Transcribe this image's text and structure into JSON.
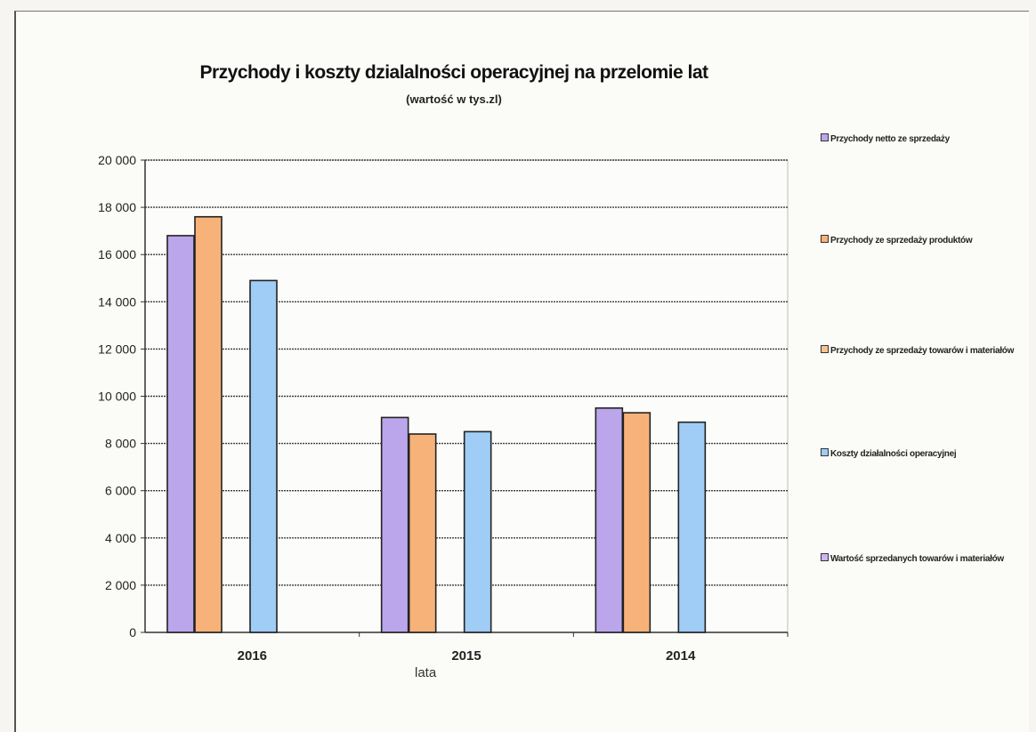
{
  "chart_data": {
    "type": "bar",
    "title": "Przychody i koszty dzialalności operacyjnej na przelomie lat",
    "subtitle": "(wartość w tys.zl)",
    "xlabel": "lata",
    "ylabel": "",
    "categories": [
      "2016",
      "2015",
      "2014"
    ],
    "ylim": [
      0,
      20000
    ],
    "yticks": [
      0,
      2000,
      4000,
      6000,
      8000,
      10000,
      12000,
      14000,
      16000,
      18000,
      20000
    ],
    "ytick_labels": [
      "0",
      "2 000",
      "4 000",
      "6 000",
      "8 000",
      "10 000",
      "12 000",
      "14 000",
      "16 000",
      "18 000",
      "20 000"
    ],
    "grid": true,
    "legend_position": "right",
    "series": [
      {
        "name": "Przychody netto ze sprzedaży",
        "color": "#bba6ec",
        "values": [
          16800,
          9100,
          9500
        ]
      },
      {
        "name": "Przychody ze sprzedaży produktów",
        "color": "#f7b27a",
        "values": [
          17600,
          8400,
          9300
        ]
      },
      {
        "name": "Przychody ze sprzedaży towarów i materiałów",
        "color": "#f4c48e",
        "values": [
          0,
          0,
          0
        ]
      },
      {
        "name": "Koszty działalności operacyjnej",
        "color": "#9fcdf5",
        "values": [
          14900,
          8500,
          8900
        ]
      },
      {
        "name": "Wartość sprzedanych towarów i materiałów",
        "color": "#c9b8ef",
        "values": [
          0,
          0,
          0
        ]
      }
    ]
  }
}
